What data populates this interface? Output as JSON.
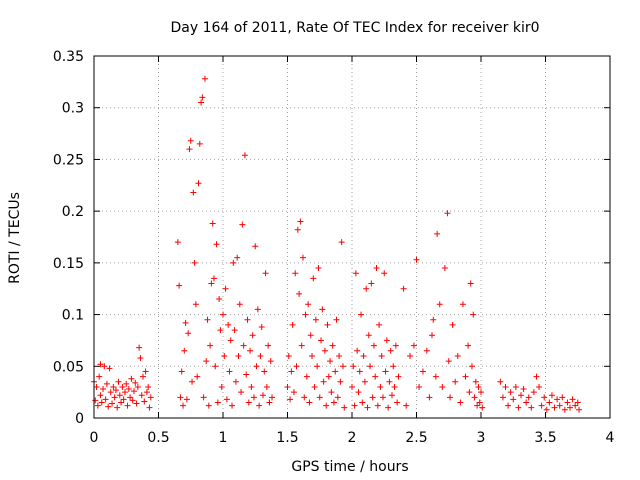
{
  "chart_data": {
    "type": "scatter",
    "title": "Day 164 of 2011, Rate Of TEC Index for receiver kir0",
    "xlabel": "GPS time / hours",
    "ylabel": "ROTI / TECUs",
    "xlim": [
      0,
      4
    ],
    "ylim": [
      0,
      0.35
    ],
    "xticks": [
      0,
      0.5,
      1,
      1.5,
      2,
      2.5,
      3,
      3.5,
      4
    ],
    "xtick_labels": [
      "0",
      "0.5",
      "1",
      "1.5",
      "2",
      "2.5",
      "3",
      "3.5",
      "4"
    ],
    "yticks": [
      0,
      0.05,
      0.1,
      0.15,
      0.2,
      0.25,
      0.3,
      0.35
    ],
    "ytick_labels": [
      "0",
      "0.05",
      "0.1",
      "0.15",
      "0.2",
      "0.25",
      "0.3",
      "0.35"
    ],
    "grid": true,
    "marker": "+",
    "color": "#ff0000",
    "series": [
      {
        "name": "ROTI",
        "points": [
          [
            0.0,
            0.035
          ],
          [
            0.01,
            0.017
          ],
          [
            0.02,
            0.03
          ],
          [
            0.03,
            0.012
          ],
          [
            0.04,
            0.04
          ],
          [
            0.05,
            0.022
          ],
          [
            0.05,
            0.052
          ],
          [
            0.06,
            0.015
          ],
          [
            0.07,
            0.028
          ],
          [
            0.08,
            0.05
          ],
          [
            0.09,
            0.018
          ],
          [
            0.1,
            0.033
          ],
          [
            0.11,
            0.011
          ],
          [
            0.12,
            0.048
          ],
          [
            0.13,
            0.025
          ],
          [
            0.14,
            0.014
          ],
          [
            0.15,
            0.03
          ],
          [
            0.16,
            0.02
          ],
          [
            0.17,
            0.027
          ],
          [
            0.18,
            0.01
          ],
          [
            0.19,
            0.035
          ],
          [
            0.2,
            0.022
          ],
          [
            0.21,
            0.015
          ],
          [
            0.22,
            0.03
          ],
          [
            0.23,
            0.018
          ],
          [
            0.24,
            0.025
          ],
          [
            0.25,
            0.033
          ],
          [
            0.26,
            0.012
          ],
          [
            0.27,
            0.028
          ],
          [
            0.28,
            0.02
          ],
          [
            0.29,
            0.038
          ],
          [
            0.3,
            0.017
          ],
          [
            0.31,
            0.026
          ],
          [
            0.32,
            0.034
          ],
          [
            0.33,
            0.014
          ],
          [
            0.34,
            0.03
          ],
          [
            0.35,
            0.068
          ],
          [
            0.36,
            0.058
          ],
          [
            0.37,
            0.022
          ],
          [
            0.38,
            0.04
          ],
          [
            0.39,
            0.016
          ],
          [
            0.4,
            0.045
          ],
          [
            0.41,
            0.025
          ],
          [
            0.42,
            0.03
          ],
          [
            0.43,
            0.01
          ],
          [
            0.44,
            0.02
          ],
          [
            0.65,
            0.17
          ],
          [
            0.66,
            0.128
          ],
          [
            0.67,
            0.02
          ],
          [
            0.68,
            0.045
          ],
          [
            0.69,
            0.012
          ],
          [
            0.7,
            0.065
          ],
          [
            0.71,
            0.092
          ],
          [
            0.72,
            0.018
          ],
          [
            0.73,
            0.082
          ],
          [
            0.74,
            0.26
          ],
          [
            0.75,
            0.268
          ],
          [
            0.76,
            0.035
          ],
          [
            0.77,
            0.218
          ],
          [
            0.78,
            0.15
          ],
          [
            0.79,
            0.11
          ],
          [
            0.8,
            0.04
          ],
          [
            0.81,
            0.227
          ],
          [
            0.82,
            0.265
          ],
          [
            0.83,
            0.305
          ],
          [
            0.84,
            0.31
          ],
          [
            0.85,
            0.02
          ],
          [
            0.86,
            0.328
          ],
          [
            0.87,
            0.055
          ],
          [
            0.88,
            0.095
          ],
          [
            0.89,
            0.012
          ],
          [
            0.9,
            0.07
          ],
          [
            0.91,
            0.13
          ],
          [
            0.92,
            0.188
          ],
          [
            0.93,
            0.135
          ],
          [
            0.94,
            0.05
          ],
          [
            0.95,
            0.168
          ],
          [
            0.96,
            0.015
          ],
          [
            0.97,
            0.115
          ],
          [
            0.98,
            0.085
          ],
          [
            0.99,
            0.03
          ],
          [
            1.0,
            0.1
          ],
          [
            1.01,
            0.06
          ],
          [
            1.02,
            0.125
          ],
          [
            1.03,
            0.018
          ],
          [
            1.04,
            0.09
          ],
          [
            1.05,
            0.045
          ],
          [
            1.06,
            0.075
          ],
          [
            1.07,
            0.012
          ],
          [
            1.08,
            0.15
          ],
          [
            1.09,
            0.085
          ],
          [
            1.1,
            0.035
          ],
          [
            1.11,
            0.155
          ],
          [
            1.12,
            0.06
          ],
          [
            1.13,
            0.11
          ],
          [
            1.14,
            0.025
          ],
          [
            1.15,
            0.187
          ],
          [
            1.16,
            0.07
          ],
          [
            1.17,
            0.254
          ],
          [
            1.18,
            0.042
          ],
          [
            1.19,
            0.095
          ],
          [
            1.2,
            0.015
          ],
          [
            1.21,
            0.065
          ],
          [
            1.22,
            0.03
          ],
          [
            1.23,
            0.08
          ],
          [
            1.24,
            0.02
          ],
          [
            1.25,
            0.166
          ],
          [
            1.26,
            0.05
          ],
          [
            1.27,
            0.105
          ],
          [
            1.28,
            0.012
          ],
          [
            1.29,
            0.06
          ],
          [
            1.3,
            0.088
          ],
          [
            1.31,
            0.022
          ],
          [
            1.32,
            0.045
          ],
          [
            1.33,
            0.14
          ],
          [
            1.34,
            0.03
          ],
          [
            1.35,
            0.07
          ],
          [
            1.36,
            0.015
          ],
          [
            1.37,
            0.055
          ],
          [
            1.38,
            0.02
          ],
          [
            1.5,
            0.03
          ],
          [
            1.51,
            0.06
          ],
          [
            1.52,
            0.018
          ],
          [
            1.53,
            0.045
          ],
          [
            1.54,
            0.09
          ],
          [
            1.55,
            0.025
          ],
          [
            1.56,
            0.14
          ],
          [
            1.57,
            0.05
          ],
          [
            1.58,
            0.182
          ],
          [
            1.59,
            0.12
          ],
          [
            1.6,
            0.19
          ],
          [
            1.61,
            0.07
          ],
          [
            1.62,
            0.155
          ],
          [
            1.63,
            0.02
          ],
          [
            1.64,
            0.1
          ],
          [
            1.65,
            0.04
          ],
          [
            1.66,
            0.11
          ],
          [
            1.67,
            0.015
          ],
          [
            1.68,
            0.08
          ],
          [
            1.69,
            0.06
          ],
          [
            1.7,
            0.135
          ],
          [
            1.71,
            0.03
          ],
          [
            1.72,
            0.095
          ],
          [
            1.73,
            0.05
          ],
          [
            1.74,
            0.145
          ],
          [
            1.75,
            0.02
          ],
          [
            1.76,
            0.075
          ],
          [
            1.77,
            0.105
          ],
          [
            1.78,
            0.035
          ],
          [
            1.79,
            0.065
          ],
          [
            1.8,
            0.012
          ],
          [
            1.81,
            0.09
          ],
          [
            1.82,
            0.04
          ],
          [
            1.83,
            0.055
          ],
          [
            1.84,
            0.025
          ],
          [
            1.85,
            0.07
          ],
          [
            1.86,
            0.015
          ],
          [
            1.87,
            0.045
          ],
          [
            1.88,
            0.095
          ],
          [
            1.89,
            0.02
          ],
          [
            1.9,
            0.06
          ],
          [
            1.91,
            0.035
          ],
          [
            1.92,
            0.17
          ],
          [
            1.93,
            0.05
          ],
          [
            1.94,
            0.01
          ],
          [
            2.0,
            0.03
          ],
          [
            2.01,
            0.05
          ],
          [
            2.02,
            0.012
          ],
          [
            2.03,
            0.14
          ],
          [
            2.04,
            0.065
          ],
          [
            2.05,
            0.025
          ],
          [
            2.06,
            0.045
          ],
          [
            2.07,
            0.1
          ],
          [
            2.08,
            0.015
          ],
          [
            2.09,
            0.06
          ],
          [
            2.1,
            0.035
          ],
          [
            2.11,
            0.125
          ],
          [
            2.12,
            0.01
          ],
          [
            2.13,
            0.08
          ],
          [
            2.14,
            0.05
          ],
          [
            2.15,
            0.13
          ],
          [
            2.16,
            0.02
          ],
          [
            2.17,
            0.07
          ],
          [
            2.18,
            0.04
          ],
          [
            2.19,
            0.145
          ],
          [
            2.2,
            0.012
          ],
          [
            2.21,
            0.09
          ],
          [
            2.22,
            0.03
          ],
          [
            2.23,
            0.06
          ],
          [
            2.24,
            0.02
          ],
          [
            2.25,
            0.14
          ],
          [
            2.26,
            0.045
          ],
          [
            2.27,
            0.075
          ],
          [
            2.28,
            0.01
          ],
          [
            2.29,
            0.035
          ],
          [
            2.3,
            0.065
          ],
          [
            2.31,
            0.022
          ],
          [
            2.32,
            0.05
          ],
          [
            2.33,
            0.03
          ],
          [
            2.34,
            0.07
          ],
          [
            2.35,
            0.015
          ],
          [
            2.36,
            0.04
          ],
          [
            2.4,
            0.125
          ],
          [
            2.42,
            0.012
          ],
          [
            2.45,
            0.06
          ],
          [
            2.48,
            0.07
          ],
          [
            2.5,
            0.153
          ],
          [
            2.52,
            0.03
          ],
          [
            2.55,
            0.045
          ],
          [
            2.58,
            0.065
          ],
          [
            2.6,
            0.02
          ],
          [
            2.62,
            0.08
          ],
          [
            2.63,
            0.095
          ],
          [
            2.65,
            0.04
          ],
          [
            2.66,
            0.178
          ],
          [
            2.68,
            0.11
          ],
          [
            2.7,
            0.03
          ],
          [
            2.72,
            0.145
          ],
          [
            2.74,
            0.198
          ],
          [
            2.75,
            0.055
          ],
          [
            2.76,
            0.02
          ],
          [
            2.78,
            0.09
          ],
          [
            2.8,
            0.035
          ],
          [
            2.82,
            0.06
          ],
          [
            2.84,
            0.015
          ],
          [
            2.86,
            0.11
          ],
          [
            2.88,
            0.04
          ],
          [
            2.9,
            0.07
          ],
          [
            2.91,
            0.025
          ],
          [
            2.92,
            0.13
          ],
          [
            2.93,
            0.05
          ],
          [
            2.94,
            0.1
          ],
          [
            2.95,
            0.02
          ],
          [
            2.96,
            0.035
          ],
          [
            2.97,
            0.012
          ],
          [
            2.98,
            0.03
          ],
          [
            2.99,
            0.015
          ],
          [
            3.0,
            0.025
          ],
          [
            3.01,
            0.01
          ],
          [
            3.15,
            0.035
          ],
          [
            3.17,
            0.02
          ],
          [
            3.19,
            0.03
          ],
          [
            3.21,
            0.012
          ],
          [
            3.23,
            0.025
          ],
          [
            3.25,
            0.018
          ],
          [
            3.27,
            0.03
          ],
          [
            3.29,
            0.01
          ],
          [
            3.31,
            0.022
          ],
          [
            3.33,
            0.028
          ],
          [
            3.35,
            0.015
          ],
          [
            3.37,
            0.02
          ],
          [
            3.39,
            0.01
          ],
          [
            3.41,
            0.025
          ],
          [
            3.43,
            0.04
          ],
          [
            3.45,
            0.03
          ],
          [
            3.47,
            0.012
          ],
          [
            3.49,
            0.02
          ],
          [
            3.51,
            0.008
          ],
          [
            3.53,
            0.015
          ],
          [
            3.55,
            0.022
          ],
          [
            3.57,
            0.01
          ],
          [
            3.59,
            0.018
          ],
          [
            3.61,
            0.012
          ],
          [
            3.63,
            0.02
          ],
          [
            3.65,
            0.008
          ],
          [
            3.67,
            0.015
          ],
          [
            3.69,
            0.01
          ],
          [
            3.71,
            0.018
          ],
          [
            3.73,
            0.012
          ],
          [
            3.75,
            0.015
          ],
          [
            3.76,
            0.008
          ]
        ]
      }
    ]
  }
}
